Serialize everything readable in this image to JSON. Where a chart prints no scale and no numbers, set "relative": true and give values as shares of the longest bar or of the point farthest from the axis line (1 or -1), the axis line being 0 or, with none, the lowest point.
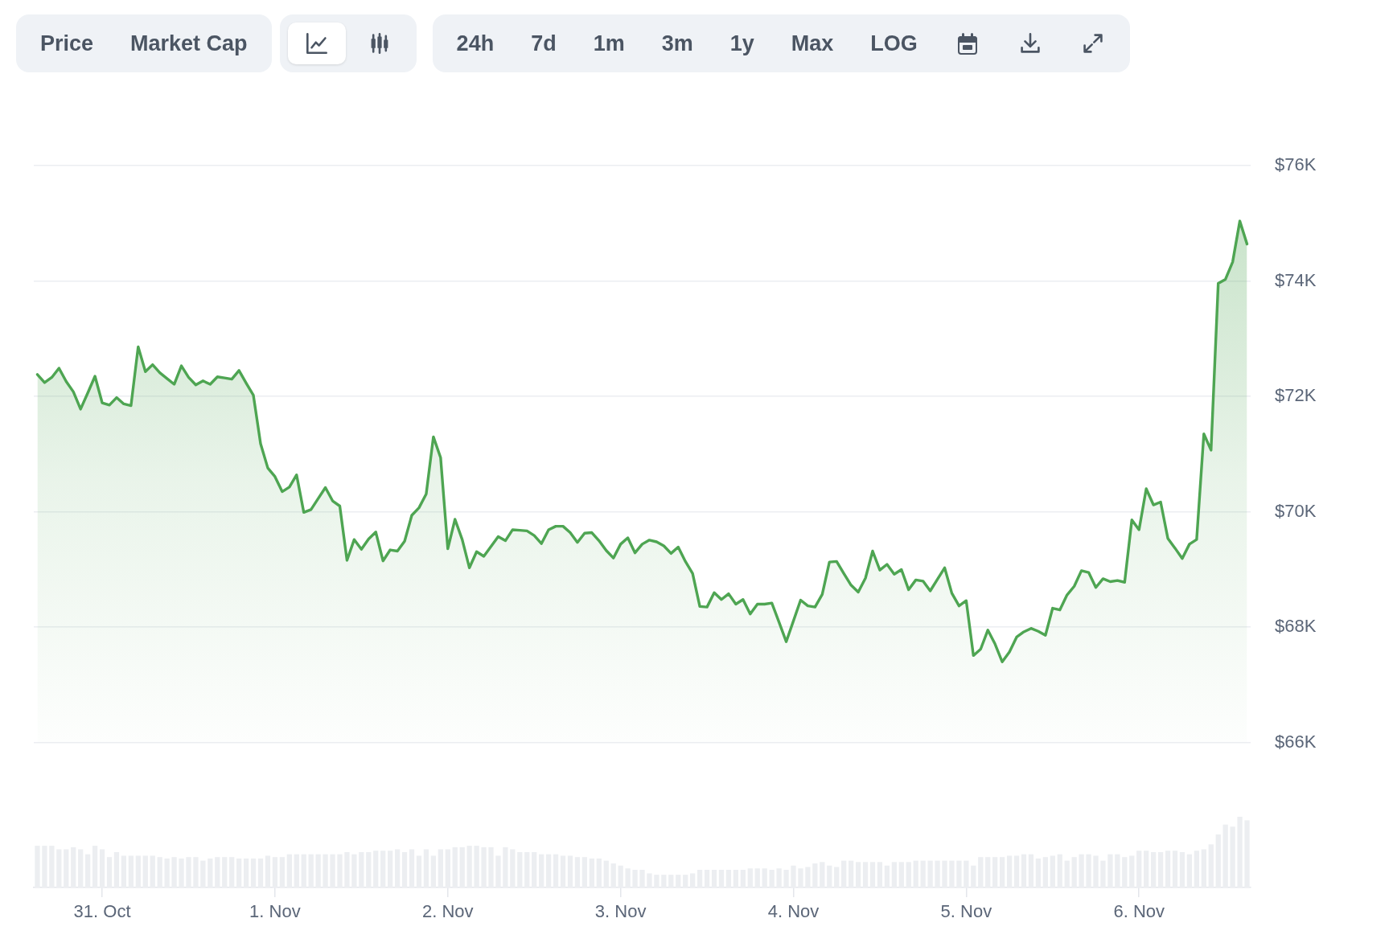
{
  "chart_data": [
    {
      "type": "area",
      "color": "#4ea552",
      "annotations": [
        "Price",
        "Market Cap",
        "24h",
        "7d",
        "1m",
        "3m",
        "1y",
        "Max",
        "LOG"
      ],
      "tick_labels": "y",
      "grid": "y",
      "ylim": [
        66000,
        76000
      ],
      "yticks": [
        {
          "value": 66000,
          "label": "$66K"
        },
        {
          "value": 68000,
          "label": "$68K"
        },
        {
          "value": 70000,
          "label": "$70K"
        },
        {
          "value": 72000,
          "label": "$72K"
        },
        {
          "value": 74000,
          "label": "$74K"
        },
        {
          "value": 76000,
          "label": "$76K"
        }
      ],
      "categories": [
        null,
        null,
        null,
        null,
        null,
        null,
        null,
        null,
        null,
        null,
        null,
        null,
        null,
        null,
        null,
        null,
        null,
        null,
        null,
        null,
        null,
        null,
        null,
        null,
        null,
        null,
        null,
        null,
        null,
        null,
        null,
        null,
        null,
        null,
        null,
        null,
        null,
        null,
        null,
        null,
        null,
        null,
        null,
        null,
        null,
        null,
        null,
        null,
        null,
        null,
        null,
        null,
        null,
        null,
        null,
        null,
        null,
        null,
        null,
        null,
        null,
        null,
        null,
        null,
        null,
        null,
        null,
        null,
        null,
        null,
        null,
        null,
        null,
        null,
        null,
        null,
        null,
        null,
        null,
        null,
        null,
        null,
        null,
        null,
        null,
        null,
        null,
        null,
        null,
        null,
        null,
        null,
        null,
        null,
        null,
        null,
        null,
        null,
        null,
        null,
        null,
        null,
        null,
        null,
        null,
        null,
        null,
        null,
        null,
        null,
        null,
        null,
        null,
        null,
        null,
        null,
        null,
        null,
        null,
        null,
        null,
        null,
        null,
        null,
        null,
        null,
        null,
        null,
        null,
        null,
        null,
        null,
        null,
        null,
        null,
        null,
        null,
        null,
        null,
        null,
        null,
        null,
        null,
        null,
        null,
        null,
        null,
        null,
        null,
        null,
        null,
        null,
        null,
        null,
        null,
        null,
        null,
        null,
        null,
        null,
        null,
        null,
        null,
        null,
        null,
        null,
        null,
        null,
        null
      ],
      "values": [
        72380,
        72240,
        72330,
        72490,
        72260,
        72080,
        71780,
        72060,
        72350,
        71890,
        71850,
        71980,
        71870,
        71840,
        72860,
        72430,
        72550,
        72410,
        72310,
        72210,
        72530,
        72330,
        72200,
        72270,
        72210,
        72340,
        72320,
        72300,
        72450,
        72230,
        72020,
        71180,
        70760,
        70610,
        70350,
        70430,
        70640,
        69990,
        70040,
        70230,
        70420,
        70190,
        70100,
        69160,
        69520,
        69350,
        69530,
        69650,
        69150,
        69340,
        69320,
        69490,
        69940,
        70070,
        70310,
        71300,
        70940,
        69360,
        69870,
        69520,
        69030,
        69310,
        69230,
        69400,
        69570,
        69500,
        69690,
        69680,
        69670,
        69590,
        69450,
        69690,
        69750,
        69750,
        69640,
        69470,
        69630,
        69640,
        69500,
        69330,
        69200,
        69440,
        69550,
        69290,
        69440,
        69510,
        69480,
        69410,
        69280,
        69390,
        69140,
        68930,
        68360,
        68350,
        68600,
        68480,
        68580,
        68400,
        68480,
        68230,
        68400,
        68400,
        68420,
        68090,
        67750,
        68110,
        68470,
        68370,
        68350,
        68570,
        69130,
        69140,
        68930,
        68730,
        68610,
        68850,
        69320,
        68990,
        69090,
        68920,
        69000,
        68650,
        68820,
        68800,
        68630,
        68830,
        69030,
        68590,
        68370,
        68460,
        67510,
        67620,
        67950,
        67710,
        67400,
        67570,
        67830,
        67920,
        67980,
        67930,
        67860,
        68330,
        68300,
        68560,
        68710,
        68980,
        68950,
        68690,
        68840,
        68790,
        68810,
        68780,
        69860,
        69690,
        70400,
        70120,
        70170,
        69540,
        69370,
        69190,
        69440,
        69520,
        71350,
        71070,
        73960,
        74030,
        74330,
        75040,
        74640
      ]
    },
    {
      "type": "bar",
      "relative": true,
      "color": "#eceef1",
      "categories": [
        null,
        null,
        null,
        null,
        null,
        null,
        null,
        null,
        null,
        "31. Oct",
        null,
        null,
        null,
        null,
        null,
        null,
        null,
        null,
        null,
        null,
        null,
        null,
        null,
        null,
        null,
        null,
        null,
        null,
        null,
        null,
        null,
        null,
        null,
        "1. Nov",
        null,
        null,
        null,
        null,
        null,
        null,
        null,
        null,
        null,
        null,
        null,
        null,
        null,
        null,
        null,
        null,
        null,
        null,
        null,
        null,
        null,
        null,
        null,
        "2. Nov",
        null,
        null,
        null,
        null,
        null,
        null,
        null,
        null,
        null,
        null,
        null,
        null,
        null,
        null,
        null,
        null,
        null,
        null,
        null,
        null,
        null,
        null,
        null,
        "3. Nov",
        null,
        null,
        null,
        null,
        null,
        null,
        null,
        null,
        null,
        null,
        null,
        null,
        null,
        null,
        null,
        null,
        null,
        null,
        null,
        null,
        null,
        null,
        null,
        "4. Nov",
        null,
        null,
        null,
        null,
        null,
        null,
        null,
        null,
        null,
        null,
        null,
        null,
        null,
        null,
        null,
        null,
        null,
        null,
        null,
        null,
        null,
        null,
        null,
        "5. Nov",
        null,
        null,
        null,
        null,
        null,
        null,
        null,
        null,
        null,
        null,
        null,
        null,
        null,
        null,
        null,
        null,
        null,
        null,
        null,
        null,
        null,
        null,
        null,
        "6. Nov",
        null,
        null,
        null,
        null,
        null,
        null,
        null,
        null,
        null,
        null,
        null,
        null,
        null,
        null,
        null
      ],
      "values": [
        0.59,
        0.59,
        0.59,
        0.54,
        0.54,
        0.57,
        0.54,
        0.47,
        0.59,
        0.54,
        0.43,
        0.5,
        0.45,
        0.45,
        0.45,
        0.45,
        0.45,
        0.43,
        0.41,
        0.43,
        0.41,
        0.43,
        0.43,
        0.38,
        0.41,
        0.43,
        0.43,
        0.43,
        0.41,
        0.41,
        0.41,
        0.41,
        0.45,
        0.43,
        0.43,
        0.47,
        0.47,
        0.47,
        0.47,
        0.47,
        0.47,
        0.47,
        0.47,
        0.5,
        0.47,
        0.5,
        0.5,
        0.52,
        0.52,
        0.52,
        0.54,
        0.5,
        0.54,
        0.45,
        0.54,
        0.45,
        0.54,
        0.54,
        0.57,
        0.57,
        0.59,
        0.59,
        0.57,
        0.57,
        0.45,
        0.57,
        0.54,
        0.5,
        0.5,
        0.5,
        0.47,
        0.47,
        0.47,
        0.45,
        0.45,
        0.43,
        0.43,
        0.41,
        0.41,
        0.38,
        0.34,
        0.31,
        0.27,
        0.25,
        0.25,
        0.2,
        0.18,
        0.18,
        0.18,
        0.18,
        0.18,
        0.2,
        0.25,
        0.25,
        0.25,
        0.25,
        0.25,
        0.25,
        0.25,
        0.27,
        0.27,
        0.27,
        0.25,
        0.27,
        0.25,
        0.31,
        0.27,
        0.29,
        0.34,
        0.36,
        0.31,
        0.29,
        0.38,
        0.38,
        0.36,
        0.36,
        0.36,
        0.36,
        0.31,
        0.36,
        0.36,
        0.36,
        0.38,
        0.38,
        0.38,
        0.38,
        0.38,
        0.38,
        0.38,
        0.38,
        0.31,
        0.43,
        0.43,
        0.43,
        0.43,
        0.45,
        0.45,
        0.47,
        0.47,
        0.41,
        0.43,
        0.45,
        0.47,
        0.38,
        0.43,
        0.47,
        0.47,
        0.45,
        0.38,
        0.47,
        0.47,
        0.43,
        0.45,
        0.52,
        0.52,
        0.5,
        0.5,
        0.52,
        0.52,
        0.5,
        0.47,
        0.52,
        0.54,
        0.61,
        0.75,
        0.89,
        0.86,
        1,
        0.95
      ]
    }
  ]
}
